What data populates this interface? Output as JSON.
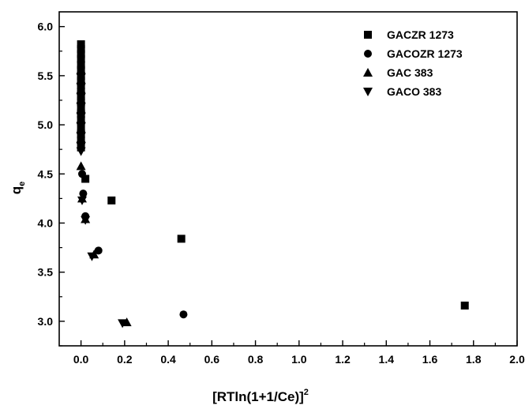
{
  "chart_data": {
    "type": "scatter",
    "title": "",
    "xlabel": "[RTln(1+1/Ce)]",
    "xlabel_superscript": "2",
    "ylabel": "q",
    "ylabel_subscript": "e",
    "xlim": [
      -0.1,
      2.0
    ],
    "ylim": [
      2.75,
      6.15
    ],
    "xticks": [
      "0.0",
      "0.2",
      "0.4",
      "0.6",
      "0.8",
      "1.0",
      "1.2",
      "1.4",
      "1.6",
      "1.8",
      "2.0"
    ],
    "yticks": [
      "3.0",
      "3.5",
      "4.0",
      "4.5",
      "5.0",
      "5.5",
      "6.0"
    ],
    "grid": false,
    "legend_position": "top-right",
    "series": [
      {
        "name": "GACZR 1273",
        "marker": "square",
        "points": [
          [
            0,
            5.82
          ],
          [
            0,
            5.77
          ],
          [
            0,
            5.72
          ],
          [
            0,
            5.67
          ],
          [
            0,
            5.61
          ],
          [
            0,
            5.56
          ],
          [
            0,
            5.5
          ],
          [
            0,
            5.45
          ],
          [
            0,
            5.4
          ],
          [
            0,
            5.34
          ],
          [
            0,
            5.29
          ],
          [
            0,
            5.23
          ],
          [
            0,
            5.17
          ],
          [
            0,
            5.11
          ],
          [
            0,
            5.05
          ],
          [
            0,
            4.98
          ],
          [
            0,
            4.91
          ],
          [
            0,
            4.84
          ],
          [
            0,
            4.77
          ],
          [
            0.02,
            4.45
          ],
          [
            0.14,
            4.23
          ],
          [
            0.46,
            3.84
          ],
          [
            1.76,
            3.16
          ]
        ]
      },
      {
        "name": "GACOZR 1273",
        "marker": "circle",
        "points": [
          [
            0,
            5.64
          ],
          [
            0,
            5.58
          ],
          [
            0,
            5.52
          ],
          [
            0,
            5.46
          ],
          [
            0,
            5.4
          ],
          [
            0,
            5.34
          ],
          [
            0,
            5.28
          ],
          [
            0,
            5.22
          ],
          [
            0,
            5.15
          ],
          [
            0,
            5.08
          ],
          [
            0,
            5.01
          ],
          [
            0,
            4.94
          ],
          [
            0,
            4.87
          ],
          [
            0.005,
            4.5
          ],
          [
            0.01,
            4.3
          ],
          [
            0.02,
            4.07
          ],
          [
            0.08,
            3.72
          ],
          [
            0.47,
            3.07
          ]
        ]
      },
      {
        "name": "GAC 383",
        "marker": "triangle-up",
        "points": [
          [
            0,
            5.56
          ],
          [
            0,
            5.46
          ],
          [
            0,
            5.36
          ],
          [
            0,
            5.26
          ],
          [
            0,
            5.16
          ],
          [
            0,
            5.06
          ],
          [
            0,
            4.96
          ],
          [
            0,
            4.86
          ],
          [
            0.0,
            4.58
          ],
          [
            0.005,
            4.25
          ],
          [
            0.02,
            4.04
          ],
          [
            0.06,
            3.68
          ],
          [
            0.21,
            2.99
          ]
        ]
      },
      {
        "name": "GACO 383",
        "marker": "triangle-down",
        "points": [
          [
            0,
            5.48
          ],
          [
            0,
            5.38
          ],
          [
            0,
            5.28
          ],
          [
            0,
            5.18
          ],
          [
            0,
            5.08
          ],
          [
            0,
            4.98
          ],
          [
            0,
            4.88
          ],
          [
            0,
            4.78
          ],
          [
            0,
            4.73
          ],
          [
            0.005,
            4.23
          ],
          [
            0.02,
            4.03
          ],
          [
            0.05,
            3.66
          ],
          [
            0.19,
            2.98
          ]
        ]
      }
    ]
  },
  "colors": {
    "marker": "#000000",
    "axis": "#000000",
    "background": "#ffffff"
  }
}
